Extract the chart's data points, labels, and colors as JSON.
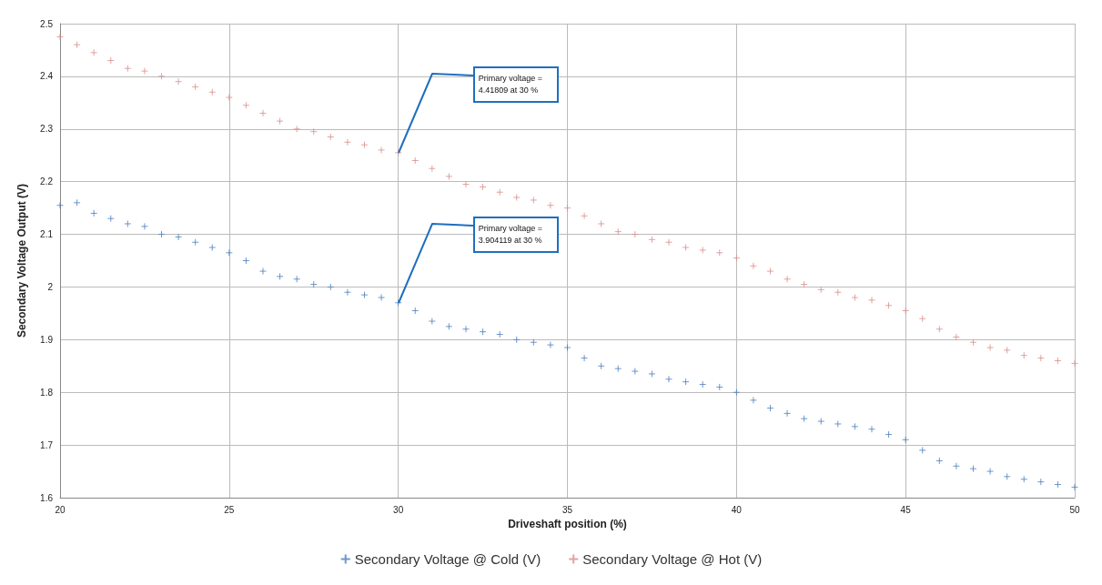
{
  "chart_data": {
    "type": "scatter",
    "xlabel": "Driveshaft position (%)",
    "ylabel": "Secondary Voltage Output (V)",
    "x": [
      20,
      20.5,
      21,
      21.5,
      22,
      22.5,
      23,
      23.5,
      24,
      24.5,
      25,
      25.5,
      26,
      26.5,
      27,
      27.5,
      28,
      28.5,
      29,
      29.5,
      30,
      30.5,
      31,
      31.5,
      32,
      32.5,
      33,
      33.5,
      34,
      34.5,
      35,
      35.5,
      36,
      36.5,
      37,
      37.5,
      38,
      38.5,
      39,
      39.5,
      40,
      40.5,
      41,
      41.5,
      42,
      42.5,
      43,
      43.5,
      44,
      44.5,
      45,
      45.5,
      46,
      46.5,
      47,
      47.5,
      48,
      48.5,
      49,
      49.5,
      50
    ],
    "series": [
      {
        "name": "Secondary Voltage @ Cold (V)",
        "color": "#4a7ebb",
        "values": [
          2.155,
          2.16,
          2.14,
          2.13,
          2.12,
          2.115,
          2.1,
          2.095,
          2.085,
          2.075,
          2.065,
          2.05,
          2.03,
          2.02,
          2.015,
          2.005,
          2.0,
          1.99,
          1.985,
          1.98,
          1.97,
          1.955,
          1.935,
          1.925,
          1.92,
          1.915,
          1.91,
          1.9,
          1.895,
          1.89,
          1.885,
          1.865,
          1.85,
          1.845,
          1.84,
          1.835,
          1.825,
          1.82,
          1.815,
          1.81,
          1.8,
          1.785,
          1.77,
          1.76,
          1.75,
          1.745,
          1.74,
          1.735,
          1.73,
          1.72,
          1.71,
          1.69,
          1.67,
          1.66,
          1.655,
          1.65,
          1.64,
          1.635,
          1.63,
          1.625,
          1.62
        ]
      },
      {
        "name": "Secondary Voltage @ Hot (V)",
        "color": "#d98c8c",
        "values": [
          2.475,
          2.46,
          2.445,
          2.43,
          2.415,
          2.41,
          2.4,
          2.39,
          2.38,
          2.37,
          2.36,
          2.345,
          2.33,
          2.315,
          2.3,
          2.295,
          2.285,
          2.275,
          2.27,
          2.26,
          2.255,
          2.24,
          2.225,
          2.21,
          2.195,
          2.19,
          2.18,
          2.17,
          2.165,
          2.155,
          2.15,
          2.135,
          2.12,
          2.105,
          2.1,
          2.09,
          2.085,
          2.075,
          2.07,
          2.065,
          2.055,
          2.04,
          2.03,
          2.015,
          2.005,
          1.995,
          1.99,
          1.98,
          1.975,
          1.965,
          1.955,
          1.94,
          1.92,
          1.905,
          1.895,
          1.885,
          1.88,
          1.87,
          1.865,
          1.86,
          1.855
        ]
      }
    ],
    "xlim": [
      20,
      50
    ],
    "xticks": [
      20,
      25,
      30,
      35,
      40,
      45,
      50
    ],
    "ylim": [
      1.6,
      2.5
    ],
    "yticks": [
      1.6,
      1.7,
      1.8,
      1.9,
      2,
      2.1,
      2.2,
      2.3,
      2.4,
      2.5
    ],
    "annotations": [
      {
        "text": "Primary voltage = 4.41809  at 30 %",
        "x": 30,
        "y": 2.255
      },
      {
        "text": "Primary voltage = 3.904119  at 30 %",
        "x": 30,
        "y": 1.97
      }
    ],
    "grid": true,
    "legend": "bottom",
    "marker": "cross"
  }
}
